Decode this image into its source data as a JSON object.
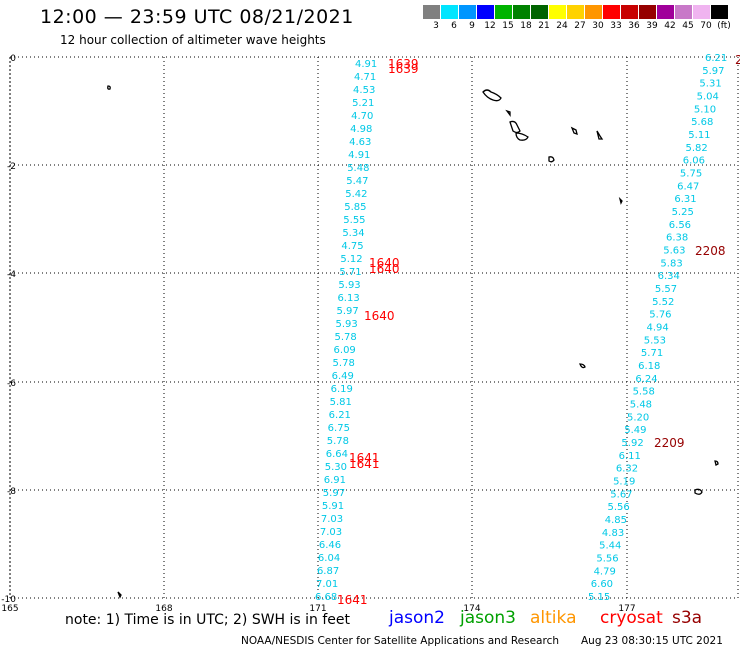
{
  "header": {
    "title": "12:00 — 23:59 UTC 08/21/2021",
    "subtitle": "12 hour collection of altimeter wave heights"
  },
  "colorbar": {
    "labels": [
      "3",
      "6",
      "9",
      "12",
      "15",
      "18",
      "21",
      "24",
      "27",
      "30",
      "33",
      "36",
      "39",
      "42",
      "45",
      "70",
      "(ft)"
    ],
    "colors": [
      "#808080",
      "#00e5ff",
      "#0096ff",
      "#0000ff",
      "#00b400",
      "#008200",
      "#006400",
      "#ffff00",
      "#ffd200",
      "#ff9600",
      "#ff0000",
      "#c80000",
      "#960000",
      "#a0009a",
      "#c878c8",
      "#f0b4f0",
      "#000000"
    ]
  },
  "map": {
    "x_ticks": [
      "165",
      "168",
      "171",
      "174",
      "177"
    ],
    "y_ticks": [
      "0",
      "-2",
      "-4",
      "-6",
      "-8",
      "-10"
    ],
    "track_a": {
      "color": "#00c8e6",
      "values": [
        "4.91",
        "4.71",
        "4.53",
        "5.21",
        "4.70",
        "4.98",
        "4.63",
        "4.91",
        "5.48",
        "5.47",
        "5.42",
        "5.85",
        "5.55",
        "5.34",
        "4.75",
        "5.12",
        "5.71",
        "5.93",
        "6.13",
        "5.97",
        "5.93",
        "5.78",
        "6.09",
        "5.78",
        "6.49",
        "6.19",
        "5.81",
        "6.21",
        "6.75",
        "5.78",
        "6.64",
        "5.30",
        "6.91",
        "5.97",
        "5.91",
        "7.03",
        "7.03",
        "6.46",
        "6.04",
        "6.87",
        "7.01",
        "6.68"
      ]
    },
    "track_b": {
      "color": "#00c8e6",
      "values": [
        "6.21",
        "5.97",
        "5.31",
        "5.04",
        "5.10",
        "5.68",
        "5.11",
        "5.82",
        "6.06",
        "5.75",
        "6.47",
        "6.31",
        "5.25",
        "6.56",
        "6.38",
        "5.63",
        "5.83",
        "6.34",
        "5.57",
        "5.52",
        "5.76",
        "4.94",
        "5.53",
        "5.71",
        "6.18",
        "6.24",
        "5.58",
        "5.48",
        "5.20",
        "5.49",
        "5.92",
        "6.11",
        "6.32",
        "5.19",
        "5.67",
        "5.56",
        "4.85",
        "4.83",
        "5.44",
        "5.56",
        "4.79",
        "6.60",
        "5.15"
      ]
    },
    "times_red": [
      "1639",
      "1639",
      "1640",
      "1640",
      "1640",
      "1641",
      "1641",
      "1641"
    ],
    "times_dark": [
      "2208",
      "2209",
      "2"
    ]
  },
  "footer": {
    "note": "note: 1) Time is in UTC; 2) SWH is in feet",
    "legend": [
      {
        "label": "jason2",
        "color": "#0000ff"
      },
      {
        "label": "jason3",
        "color": "#00a000"
      },
      {
        "label": "altika",
        "color": "#ff9600"
      },
      {
        "label": "cryosat",
        "color": "#ff0000"
      },
      {
        "label": "s3a",
        "color": "#960000"
      }
    ],
    "credit": "NOAA/NESDIS Center for Satellite Applications and Research",
    "timestamp": "Aug 23 08:30:15 UTC 2021"
  }
}
